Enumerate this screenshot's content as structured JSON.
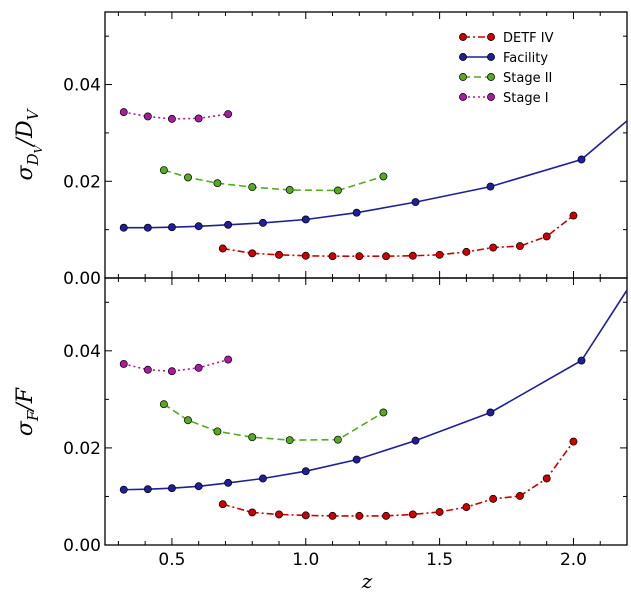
{
  "chart_data": [
    {
      "type": "line",
      "panel": "top",
      "ylabel_main": "σ",
      "ylabel_sub": "D",
      "ylabel_subsub": "V",
      "ylabel_den": "D",
      "ylabel_densub": "V",
      "xlim": [
        0.25,
        2.2
      ],
      "ylim": [
        0.0,
        0.055
      ],
      "yticks": [
        "0.00",
        "0.02",
        "0.04"
      ],
      "yticks_values": [
        0.0,
        0.02,
        0.04
      ],
      "xticks_values": [
        0.5,
        1.0,
        1.5,
        2.0
      ],
      "legend_placement": "top-right",
      "series": [
        {
          "name": "DETF IV",
          "color": "#cc0000",
          "style": "dashdot",
          "x": [
            0.69,
            0.8,
            0.9,
            1.0,
            1.1,
            1.2,
            1.3,
            1.4,
            1.5,
            1.6,
            1.7,
            1.8,
            1.9,
            2.0
          ],
          "y": [
            0.0061,
            0.0051,
            0.0048,
            0.0046,
            0.0045,
            0.0045,
            0.0045,
            0.0046,
            0.0048,
            0.0054,
            0.0063,
            0.0066,
            0.0086,
            0.0129
          ]
        },
        {
          "name": "Facility",
          "color": "#1f1f99",
          "style": "solid",
          "x": [
            0.32,
            0.41,
            0.5,
            0.6,
            0.71,
            0.84,
            1.0,
            1.19,
            1.41,
            1.69,
            2.03,
            2.2
          ],
          "y": [
            0.0104,
            0.0104,
            0.0105,
            0.0107,
            0.011,
            0.0114,
            0.0121,
            0.0135,
            0.0157,
            0.0189,
            0.0245,
            0.0325
          ]
        },
        {
          "name": "Stage II",
          "color": "#55aa22",
          "style": "dashed",
          "x": [
            0.47,
            0.56,
            0.67,
            0.8,
            0.94,
            1.12,
            1.29
          ],
          "y": [
            0.0223,
            0.0208,
            0.0196,
            0.0188,
            0.0182,
            0.0181,
            0.021
          ]
        },
        {
          "name": "Stage I",
          "color": "#aa1ba0",
          "style": "dotted",
          "x": [
            0.32,
            0.41,
            0.5,
            0.6,
            0.71
          ],
          "y": [
            0.0343,
            0.0334,
            0.0329,
            0.033,
            0.0339
          ]
        }
      ]
    },
    {
      "type": "line",
      "panel": "bottom",
      "ylabel_main": "σ",
      "ylabel_sub": "F",
      "ylabel_den": "F",
      "xlabel": "z",
      "xlim": [
        0.25,
        2.2
      ],
      "ylim": [
        0.0,
        0.055
      ],
      "yticks": [
        "0.00",
        "0.02",
        "0.04"
      ],
      "yticks_values": [
        0.0,
        0.02,
        0.04
      ],
      "xticks": [
        "0.5",
        "1.0",
        "1.5",
        "2.0"
      ],
      "xticks_values": [
        0.5,
        1.0,
        1.5,
        2.0
      ],
      "series": [
        {
          "name": "DETF IV",
          "color": "#cc0000",
          "style": "dashdot",
          "x": [
            0.69,
            0.8,
            0.9,
            1.0,
            1.1,
            1.2,
            1.3,
            1.4,
            1.5,
            1.6,
            1.7,
            1.8,
            1.9,
            2.0
          ],
          "y": [
            0.0084,
            0.0067,
            0.0063,
            0.0061,
            0.006,
            0.006,
            0.006,
            0.0063,
            0.0068,
            0.0078,
            0.0095,
            0.0101,
            0.0137,
            0.0213
          ]
        },
        {
          "name": "Facility",
          "color": "#1f1f99",
          "style": "solid",
          "x": [
            0.32,
            0.41,
            0.5,
            0.6,
            0.71,
            0.84,
            1.0,
            1.19,
            1.41,
            1.69,
            2.03,
            2.2
          ],
          "y": [
            0.0114,
            0.0115,
            0.0117,
            0.0121,
            0.0128,
            0.0137,
            0.0152,
            0.0176,
            0.0215,
            0.0273,
            0.038,
            0.0525
          ]
        },
        {
          "name": "Stage II",
          "color": "#55aa22",
          "style": "dashed",
          "x": [
            0.47,
            0.56,
            0.67,
            0.8,
            0.94,
            1.12,
            1.29
          ],
          "y": [
            0.029,
            0.0257,
            0.0234,
            0.0222,
            0.0216,
            0.0217,
            0.0273
          ]
        },
        {
          "name": "Stage I",
          "color": "#aa1ba0",
          "style": "dotted",
          "x": [
            0.32,
            0.41,
            0.5,
            0.6,
            0.71
          ],
          "y": [
            0.0373,
            0.0361,
            0.0358,
            0.0365,
            0.0382
          ]
        }
      ]
    }
  ]
}
